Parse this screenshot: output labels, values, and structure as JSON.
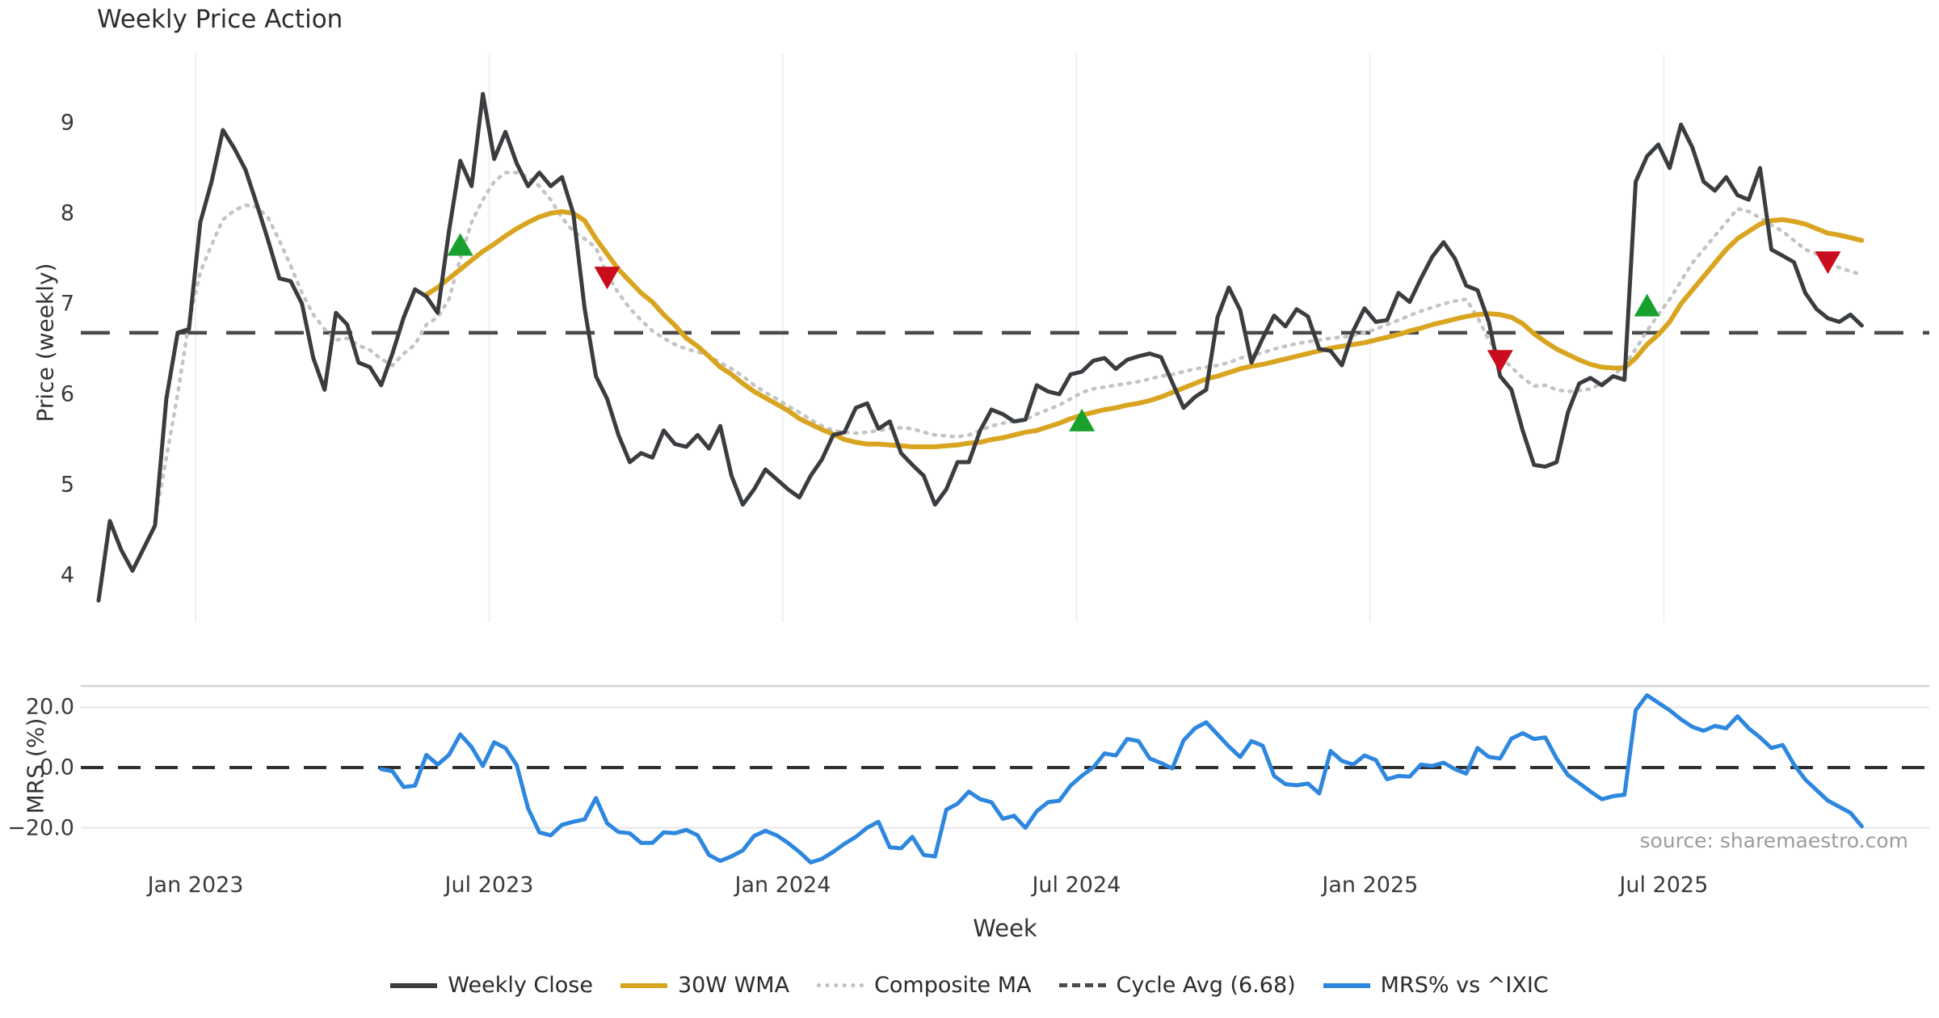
{
  "title": "Weekly Price Action",
  "source": "source: sharemaestro.com",
  "axis": {
    "price_label": "Price (weekly)",
    "mrs_label": "MRS (%)",
    "week_label": "Week"
  },
  "legend": {
    "items": [
      {
        "label": "Weekly Close",
        "swatch": "solid",
        "color": "#3a3d40"
      },
      {
        "label": "30W WMA",
        "swatch": "solid",
        "color": "#d9a521"
      },
      {
        "label": "Composite MA",
        "swatch": "dotted",
        "color": "#bfbfbf"
      },
      {
        "label": "Cycle Avg (6.68)",
        "swatch": "dashed",
        "color": "#4a4a4a"
      },
      {
        "label": "MRS% vs ^IXIC",
        "swatch": "solid",
        "color": "#2d87de"
      }
    ]
  },
  "chart_data": [
    {
      "type": "line",
      "title": "Weekly Price Action",
      "xlabel": "Week",
      "ylabel": "Price (weekly)",
      "x_tick_labels": [
        "Jan 2023",
        "Jul 2023",
        "Jan 2024",
        "Jul 2024",
        "Jan 2025",
        "Jul 2025"
      ],
      "y_ticks": [
        4,
        5,
        6,
        7,
        8,
        9
      ],
      "ylim": [
        3.4,
        9.7
      ],
      "grid": "vertical-only",
      "legend_position": "bottom",
      "cycle_avg": 6.68,
      "series": [
        {
          "name": "Weekly Close",
          "color": "#3a3d40",
          "style": "solid",
          "start_week": 0,
          "values": [
            3.72,
            4.6,
            4.28,
            4.05,
            4.3,
            4.55,
            5.95,
            6.68,
            6.72,
            7.9,
            8.35,
            8.92,
            8.72,
            8.48,
            8.1,
            7.7,
            7.28,
            7.25,
            7.0,
            6.4,
            6.05,
            6.9,
            6.77,
            6.35,
            6.3,
            6.1,
            6.45,
            6.85,
            7.16,
            7.08,
            6.9,
            7.8,
            8.58,
            8.3,
            9.32,
            8.6,
            8.9,
            8.55,
            8.3,
            8.45,
            8.3,
            8.4,
            8.0,
            6.95,
            6.2,
            5.95,
            5.55,
            5.25,
            5.35,
            5.3,
            5.6,
            5.45,
            5.42,
            5.55,
            5.4,
            5.65,
            5.1,
            4.78,
            4.95,
            5.17,
            5.06,
            4.95,
            4.86,
            5.1,
            5.28,
            5.55,
            5.58,
            5.85,
            5.9,
            5.62,
            5.7,
            5.35,
            5.22,
            5.1,
            4.78,
            4.95,
            5.25,
            5.25,
            5.6,
            5.83,
            5.78,
            5.7,
            5.72,
            6.1,
            6.03,
            6.0,
            6.22,
            6.25,
            6.37,
            6.4,
            6.28,
            6.38,
            6.42,
            6.45,
            6.41,
            6.13,
            5.85,
            5.97,
            6.05,
            6.85,
            7.18,
            6.93,
            6.35,
            6.62,
            6.87,
            6.75,
            6.94,
            6.86,
            6.5,
            6.48,
            6.32,
            6.7,
            6.95,
            6.8,
            6.82,
            7.12,
            7.02,
            7.28,
            7.52,
            7.68,
            7.5,
            7.2,
            7.15,
            6.8,
            6.2,
            6.05,
            5.6,
            5.22,
            5.2,
            5.25,
            5.8,
            6.12,
            6.18,
            6.1,
            6.2,
            6.16,
            8.35,
            8.63,
            8.76,
            8.5,
            8.98,
            8.73,
            8.35,
            8.25,
            8.4,
            8.2,
            8.15,
            8.5,
            7.6,
            7.53,
            7.46,
            7.12,
            6.94,
            6.84,
            6.8,
            6.88,
            6.76
          ]
        },
        {
          "name": "30W WMA",
          "color": "#d9a521",
          "style": "solid",
          "start_week": 29,
          "values": [
            7.1,
            7.18,
            7.28,
            7.38,
            7.48,
            7.58,
            7.66,
            7.75,
            7.83,
            7.9,
            7.96,
            8.0,
            8.02,
            8.0,
            7.92,
            7.72,
            7.55,
            7.38,
            7.25,
            7.12,
            7.02,
            6.88,
            6.76,
            6.62,
            6.53,
            6.42,
            6.3,
            6.22,
            6.12,
            6.03,
            5.96,
            5.89,
            5.82,
            5.73,
            5.67,
            5.61,
            5.56,
            5.5,
            5.47,
            5.45,
            5.45,
            5.44,
            5.43,
            5.42,
            5.42,
            5.42,
            5.43,
            5.44,
            5.46,
            5.47,
            5.5,
            5.52,
            5.55,
            5.58,
            5.6,
            5.64,
            5.68,
            5.73,
            5.77,
            5.8,
            5.83,
            5.85,
            5.88,
            5.9,
            5.93,
            5.97,
            6.02,
            6.07,
            6.12,
            6.17,
            6.2,
            6.24,
            6.28,
            6.31,
            6.33,
            6.36,
            6.39,
            6.42,
            6.45,
            6.48,
            6.51,
            6.53,
            6.55,
            6.57,
            6.6,
            6.63,
            6.66,
            6.7,
            6.73,
            6.77,
            6.8,
            6.83,
            6.86,
            6.88,
            6.89,
            6.88,
            6.85,
            6.78,
            6.67,
            6.58,
            6.5,
            6.44,
            6.38,
            6.33,
            6.3,
            6.29,
            6.29,
            6.4,
            6.55,
            6.66,
            6.8,
            7.0,
            7.15,
            7.3,
            7.45,
            7.6,
            7.72,
            7.8,
            7.88,
            7.92,
            7.93,
            7.91,
            7.88,
            7.83,
            7.78,
            7.76,
            7.73,
            7.7
          ]
        },
        {
          "name": "Composite MA",
          "color": "#c4c4c4",
          "style": "dotted",
          "start_week": 5,
          "values": [
            4.6,
            5.3,
            6.0,
            6.8,
            7.35,
            7.65,
            7.93,
            8.03,
            8.09,
            8.07,
            7.95,
            7.7,
            7.42,
            7.12,
            6.88,
            6.72,
            6.6,
            6.62,
            6.54,
            6.49,
            6.39,
            6.32,
            6.45,
            6.55,
            6.77,
            6.85,
            7.05,
            7.5,
            7.9,
            8.15,
            8.35,
            8.45,
            8.45,
            8.4,
            8.3,
            8.15,
            7.95,
            7.8,
            7.72,
            7.62,
            7.32,
            7.12,
            6.95,
            6.82,
            6.7,
            6.62,
            6.55,
            6.5,
            6.47,
            6.42,
            6.35,
            6.28,
            6.2,
            6.1,
            6.02,
            5.95,
            5.87,
            5.8,
            5.72,
            5.65,
            5.6,
            5.58,
            5.57,
            5.58,
            5.6,
            5.62,
            5.63,
            5.62,
            5.58,
            5.55,
            5.54,
            5.53,
            5.55,
            5.6,
            5.65,
            5.68,
            5.7,
            5.72,
            5.78,
            5.83,
            5.88,
            5.95,
            6.02,
            6.06,
            6.08,
            6.1,
            6.12,
            6.14,
            6.17,
            6.2,
            6.22,
            6.25,
            6.28,
            6.3,
            6.32,
            6.35,
            6.4,
            6.43,
            6.46,
            6.5,
            6.53,
            6.56,
            6.58,
            6.6,
            6.62,
            6.63,
            6.65,
            6.68,
            6.72,
            6.77,
            6.82,
            6.87,
            6.92,
            6.96,
            7.0,
            7.03,
            7.05,
            6.85,
            6.6,
            6.42,
            6.3,
            6.18,
            6.09,
            6.1,
            6.05,
            6.03,
            6.04,
            6.06,
            6.12,
            6.2,
            6.32,
            6.5,
            6.7,
            6.88,
            7.05,
            7.25,
            7.45,
            7.6,
            7.75,
            7.9,
            8.05,
            8.02,
            7.95,
            7.87,
            7.8,
            7.7,
            7.6,
            7.55,
            7.47,
            7.4,
            7.36,
            7.32
          ]
        },
        {
          "name": "Cycle Avg (6.68)",
          "color": "#4a4a4a",
          "style": "dashed",
          "value": 6.68
        }
      ],
      "markers": [
        {
          "direction": "up",
          "color": "#18a12c",
          "week": 32,
          "price": 7.62
        },
        {
          "direction": "down",
          "color": "#c90d1c",
          "week": 45,
          "price": 7.32
        },
        {
          "direction": "up",
          "color": "#18a12c",
          "week": 87,
          "price": 5.68
        },
        {
          "direction": "down",
          "color": "#c90d1c",
          "week": 124,
          "price": 6.4
        },
        {
          "direction": "up",
          "color": "#18a12c",
          "week": 137,
          "price": 6.95
        },
        {
          "direction": "down",
          "color": "#c90d1c",
          "week": 153,
          "price": 7.49
        }
      ]
    },
    {
      "type": "line",
      "ylabel": "MRS (%)",
      "y_ticks": [
        "20.0",
        "0.0",
        "−20.0"
      ],
      "y_tick_values": [
        20,
        0,
        -20
      ],
      "ylim": [
        -34,
        28
      ],
      "zero_line_dashed": true,
      "series": [
        {
          "name": "MRS% vs ^IXIC",
          "color": "#2d87de",
          "style": "solid",
          "start_week": 25,
          "values": [
            -0.5,
            -1.2,
            -6.5,
            -6.0,
            4.2,
            1.0,
            4.2,
            11.0,
            6.8,
            0.5,
            8.4,
            6.5,
            0.8,
            -13.5,
            -21.5,
            -22.5,
            -19.0,
            -18.0,
            -17.2,
            -10.1,
            -18.5,
            -21.4,
            -21.8,
            -25.0,
            -25.0,
            -21.5,
            -21.8,
            -20.7,
            -22.5,
            -29.0,
            -31.0,
            -29.5,
            -27.5,
            -22.7,
            -21.0,
            -22.5,
            -25.0,
            -28.0,
            -31.5,
            -30.3,
            -28.0,
            -25.3,
            -23.0,
            -20.0,
            -18.0,
            -26.5,
            -26.8,
            -23.0,
            -29.0,
            -29.5,
            -14.0,
            -12.0,
            -8.0,
            -10.5,
            -11.5,
            -17.0,
            -16.0,
            -20.0,
            -14.5,
            -11.5,
            -11.0,
            -6.0,
            -2.7,
            0.0,
            4.7,
            4.0,
            9.5,
            8.8,
            3.0,
            1.5,
            -0.3,
            9.0,
            13.0,
            15.0,
            11.0,
            7.0,
            3.5,
            8.8,
            7.2,
            -2.8,
            -5.5,
            -5.9,
            -5.3,
            -8.6,
            5.5,
            2.2,
            1.0,
            4.0,
            2.5,
            -3.9,
            -2.8,
            -3.0,
            1.0,
            0.5,
            1.6,
            -0.5,
            -2.0,
            6.5,
            3.5,
            3.0,
            9.6,
            11.4,
            9.5,
            10.0,
            3.0,
            -2.5,
            -5.2,
            -8.0,
            -10.5,
            -9.5,
            -9.0,
            19.0,
            24.0,
            21.5,
            19.0,
            16.0,
            13.5,
            12.2,
            13.8,
            13.0,
            17.0,
            13.0,
            10.0,
            6.5,
            7.5,
            1.0,
            -4.0,
            -7.5,
            -11.0,
            -13.0,
            -15.0,
            -19.5
          ]
        }
      ]
    }
  ]
}
